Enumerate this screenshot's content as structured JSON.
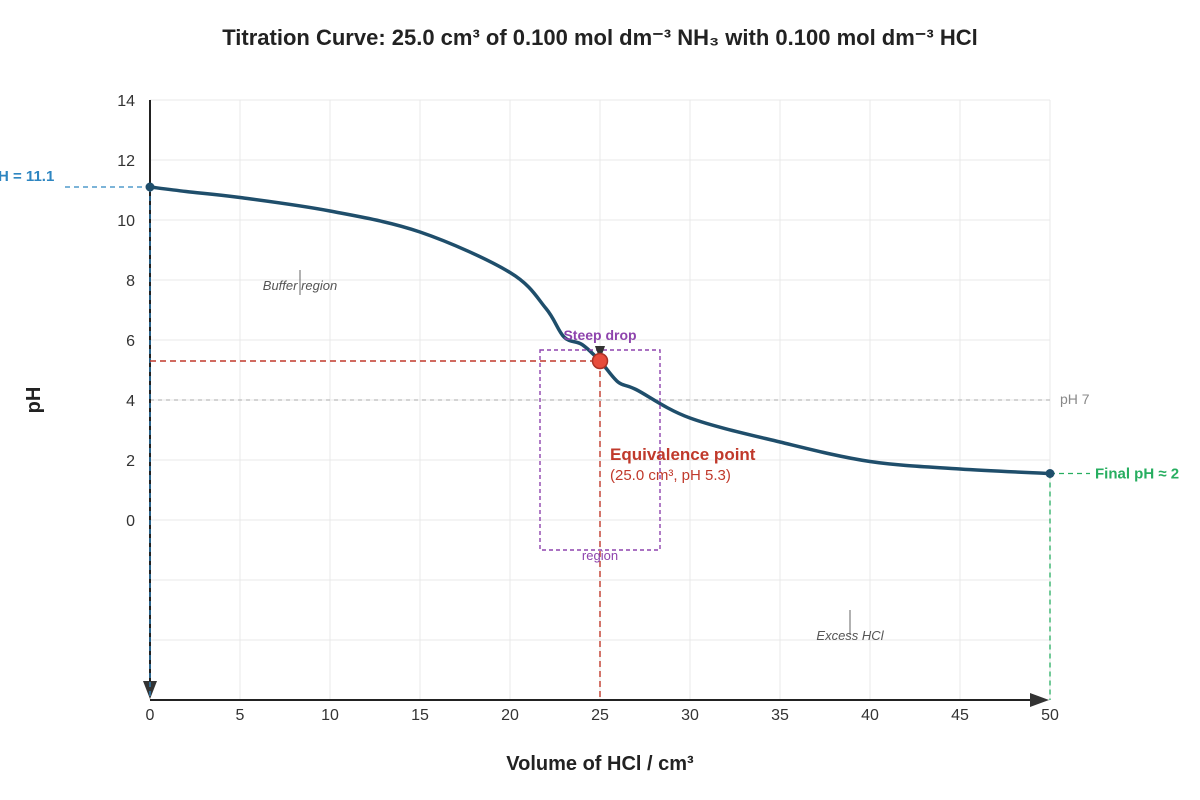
{
  "chart_data": {
    "type": "line",
    "title": "Titration Curve: 25.0 cm³ of 0.100 mol dm⁻³ NH₃ with 0.100 mol dm⁻³ HCl",
    "xlabel": "Volume of HCl / cm³",
    "ylabel": "pH",
    "xlim": [
      0,
      50
    ],
    "xticks": [
      "0",
      "5",
      "10",
      "15",
      "20",
      "25",
      "30",
      "35",
      "40",
      "45",
      "50"
    ],
    "yticks": [
      "14",
      "12",
      "10",
      "8",
      "6",
      "4",
      "2",
      "0"
    ],
    "grid": true,
    "series": [
      {
        "color": "#1f4e6b",
        "x": [
          0,
          2,
          5,
          10,
          15,
          20,
          22,
          23,
          24,
          25,
          26,
          27,
          30,
          35,
          40,
          45,
          50
        ],
        "y": [
          11.1,
          10.95,
          10.75,
          10.3,
          9.6,
          8.25,
          7.05,
          6.1,
          5.85,
          5.3,
          4.6,
          4.35,
          3.4,
          2.6,
          1.95,
          1.7,
          1.55
        ]
      }
    ],
    "annotations": {
      "start_label": "H = 11.1",
      "final_label": "Final pH ≈ 2",
      "buffer_label": "Buffer region",
      "steep_label": "Steep drop",
      "region_label": "region",
      "excess_label": "Excess HCl",
      "ph7_label": "pH 7",
      "equivalence_title": "Equivalence point",
      "equivalence_detail": "(25.0 cm³, pH 5.3)"
    },
    "equivalence_point": {
      "x": 25,
      "y": 5.3
    },
    "colors": {
      "curve": "#1f4e6b",
      "equivalence": "#c0392b",
      "start": "#2e86c1",
      "final": "#27ae60",
      "steep": "#8e44ad"
    }
  }
}
